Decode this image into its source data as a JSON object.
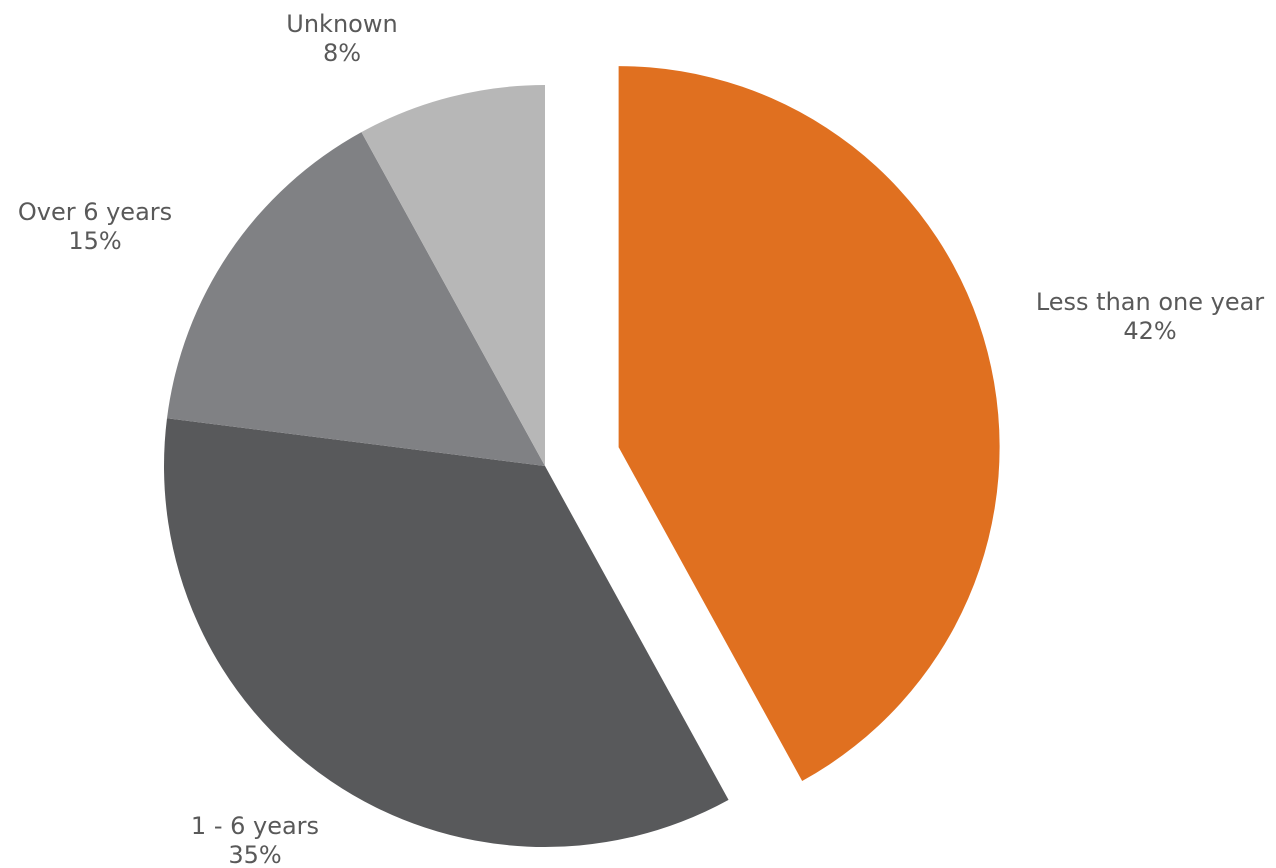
{
  "chart_data": {
    "type": "pie",
    "title": "",
    "slices": [
      {
        "label": "Less than one year",
        "value": 42,
        "value_label": "42%",
        "color": "#E07020",
        "exploded": true
      },
      {
        "label": "1 - 6 years",
        "value": 35,
        "value_label": "35%",
        "color": "#58595B",
        "exploded": false
      },
      {
        "label": "Over 6 years",
        "value": 15,
        "value_label": "15%",
        "color": "#808184",
        "exploded": false
      },
      {
        "label": "Unknown",
        "value": 8,
        "value_label": "8%",
        "color": "#B7B7B7",
        "exploded": false
      }
    ],
    "start_angle_deg": 0,
    "direction": "clockwise",
    "legend": "none",
    "labels": "outside"
  }
}
